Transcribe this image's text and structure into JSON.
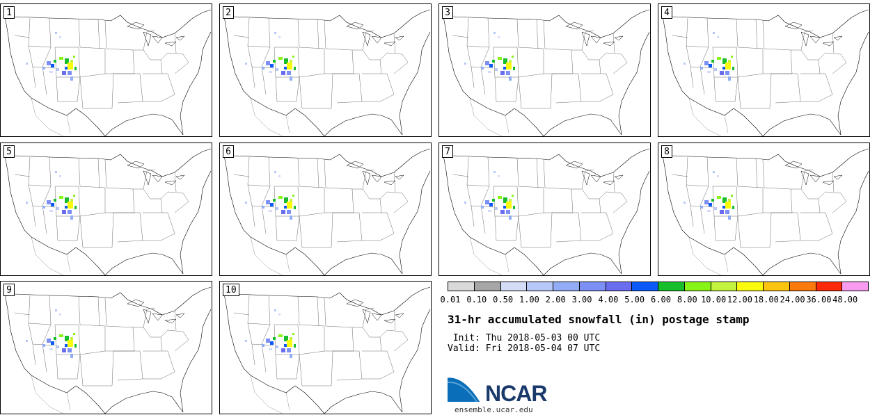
{
  "panels": [
    {
      "label": "1"
    },
    {
      "label": "2"
    },
    {
      "label": "3"
    },
    {
      "label": "4"
    },
    {
      "label": "5"
    },
    {
      "label": "6"
    },
    {
      "label": "7"
    },
    {
      "label": "8"
    },
    {
      "label": "9"
    },
    {
      "label": "10"
    }
  ],
  "colorbar": {
    "colors": [
      "#d9d9d9",
      "#a6a6a6",
      "#d4dcf8",
      "#b6c8f7",
      "#92adf5",
      "#7b8ff4",
      "#6a6df0",
      "#0b5af8",
      "#17be2c",
      "#88f316",
      "#c3f33e",
      "#fbfb0e",
      "#fcc30f",
      "#fb7a0c",
      "#fb2a0b",
      "#f99cf0"
    ],
    "labels": [
      "0.01",
      "0.10",
      "0.50",
      "1.00",
      "2.00",
      "3.00",
      "4.00",
      "5.00",
      "6.00",
      "8.00",
      "10.00",
      "12.00",
      "18.00",
      "24.00",
      "36.00",
      "48.00"
    ]
  },
  "title": "31-hr accumulated snowfall (in) postage stamp",
  "init": " Init: Thu 2018-05-03 00 UTC",
  "valid": "Valid: Fri 2018-05-04 07 UTC",
  "logo_text": "NCAR",
  "footer_url": "ensemble.ucar.edu"
}
